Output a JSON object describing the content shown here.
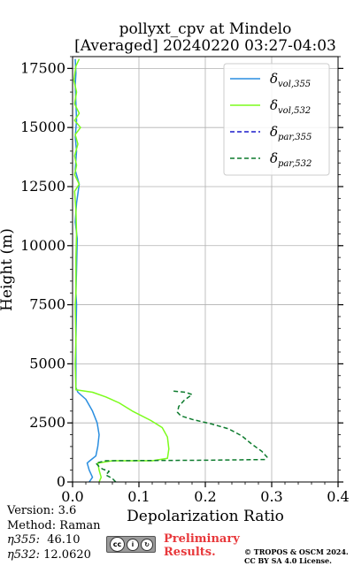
{
  "chart_data": {
    "type": "line",
    "title_line1": "pollyxt_cpv at Mindelo",
    "title_line2": "[Averaged] 20240220 03:27-04:03",
    "xlabel": "Depolarization Ratio",
    "ylabel": "Height (m)",
    "xlim": [
      0,
      0.4
    ],
    "ylim": [
      0,
      18000
    ],
    "x_ticks": [
      0.0,
      0.1,
      0.2,
      0.3,
      0.4
    ],
    "x_tick_labels": [
      "0.0",
      "0.1",
      "0.2",
      "0.3",
      "0.4"
    ],
    "y_ticks": [
      0,
      2500,
      5000,
      7500,
      10000,
      12500,
      15000,
      17500
    ],
    "y_tick_labels": [
      "0",
      "2500",
      "5000",
      "7500",
      "10000",
      "12500",
      "15000",
      "17500"
    ],
    "grid": true,
    "legend_position": "top-right",
    "series": [
      {
        "name": "vol,355",
        "color": "#2a8ee0",
        "dash": "solid",
        "points": [
          [
            0.025,
            0
          ],
          [
            0.03,
            200
          ],
          [
            0.025,
            500
          ],
          [
            0.022,
            800
          ],
          [
            0.026,
            900
          ],
          [
            0.035,
            1100
          ],
          [
            0.038,
            1500
          ],
          [
            0.04,
            2000
          ],
          [
            0.037,
            2500
          ],
          [
            0.03,
            3000
          ],
          [
            0.02,
            3500
          ],
          [
            0.008,
            3800
          ],
          [
            0.005,
            4000
          ],
          [
            0.005,
            5000
          ],
          [
            0.005,
            6000
          ],
          [
            0.006,
            7500
          ],
          [
            0.005,
            8000
          ],
          [
            0.006,
            9000
          ],
          [
            0.007,
            10300
          ],
          [
            0.004,
            11000
          ],
          [
            0.006,
            11800
          ],
          [
            0.008,
            12200
          ],
          [
            0.01,
            12600
          ],
          [
            0.004,
            13200
          ],
          [
            0.006,
            14000
          ],
          [
            0.004,
            14600
          ],
          [
            0.006,
            15300
          ],
          [
            0.005,
            16000
          ],
          [
            0.004,
            16800
          ],
          [
            0.005,
            17300
          ],
          [
            0.004,
            17900
          ]
        ]
      },
      {
        "name": "vol,532",
        "color": "#7cfc1c",
        "dash": "solid",
        "points": [
          [
            0.04,
            0
          ],
          [
            0.043,
            200
          ],
          [
            0.04,
            500
          ],
          [
            0.038,
            800
          ],
          [
            0.06,
            900
          ],
          [
            0.12,
            900
          ],
          [
            0.143,
            1000
          ],
          [
            0.145,
            1400
          ],
          [
            0.143,
            1900
          ],
          [
            0.135,
            2300
          ],
          [
            0.118,
            2600
          ],
          [
            0.09,
            3000
          ],
          [
            0.07,
            3350
          ],
          [
            0.05,
            3600
          ],
          [
            0.03,
            3800
          ],
          [
            0.005,
            3900
          ],
          [
            0.004,
            5000
          ],
          [
            0.005,
            6000
          ],
          [
            0.004,
            7500
          ],
          [
            0.005,
            8000
          ],
          [
            0.005,
            9500
          ],
          [
            0.006,
            10500
          ],
          [
            0.005,
            11500
          ],
          [
            0.003,
            12300
          ],
          [
            0.01,
            12600
          ],
          [
            0.003,
            13000
          ],
          [
            0.006,
            13400
          ],
          [
            0.003,
            13800
          ],
          [
            0.008,
            14300
          ],
          [
            0.004,
            14700
          ],
          [
            0.012,
            15000
          ],
          [
            0.003,
            15300
          ],
          [
            0.01,
            15600
          ],
          [
            0.003,
            16000
          ],
          [
            0.006,
            16500
          ],
          [
            0.002,
            17000
          ],
          [
            0.005,
            17600
          ],
          [
            0.01,
            17900
          ]
        ]
      },
      {
        "name": "par,355",
        "color": "#1a1acc",
        "dash": "dashed",
        "points": []
      },
      {
        "name": "par,532",
        "color": "#0b7a2c",
        "dash": "dashed",
        "points": [
          [
            0.065,
            0
          ],
          [
            0.06,
            150
          ],
          [
            0.05,
            300
          ],
          [
            0.055,
            450
          ],
          [
            0.045,
            550
          ],
          [
            0.04,
            650
          ],
          [
            0.035,
            800
          ],
          [
            0.05,
            900
          ],
          [
            0.2,
            920
          ],
          [
            0.29,
            950
          ],
          [
            0.293,
            1050
          ],
          [
            0.285,
            1300
          ],
          [
            0.27,
            1600
          ],
          [
            0.255,
            1950
          ],
          [
            0.235,
            2250
          ],
          [
            0.21,
            2450
          ],
          [
            0.18,
            2650
          ],
          [
            0.163,
            2800
          ],
          [
            0.158,
            2950
          ],
          [
            0.16,
            3200
          ],
          [
            0.168,
            3450
          ],
          [
            0.18,
            3700
          ],
          [
            0.17,
            3800
          ],
          [
            0.15,
            3850
          ]
        ]
      }
    ]
  },
  "info": {
    "version": "Version: 3.6",
    "method": "Method: Raman",
    "eta355_label": "η355:",
    "eta355_value": "46.10",
    "eta532_label": "η532:",
    "eta532_value": "12.0620"
  },
  "license": {
    "badge": "cc",
    "preliminary_line1": "Preliminary",
    "preliminary_line2": "Results.",
    "copyright_line1": "© TROPOS & OSCM 2024.",
    "copyright_line2": "CC BY SA 4.0 License."
  }
}
